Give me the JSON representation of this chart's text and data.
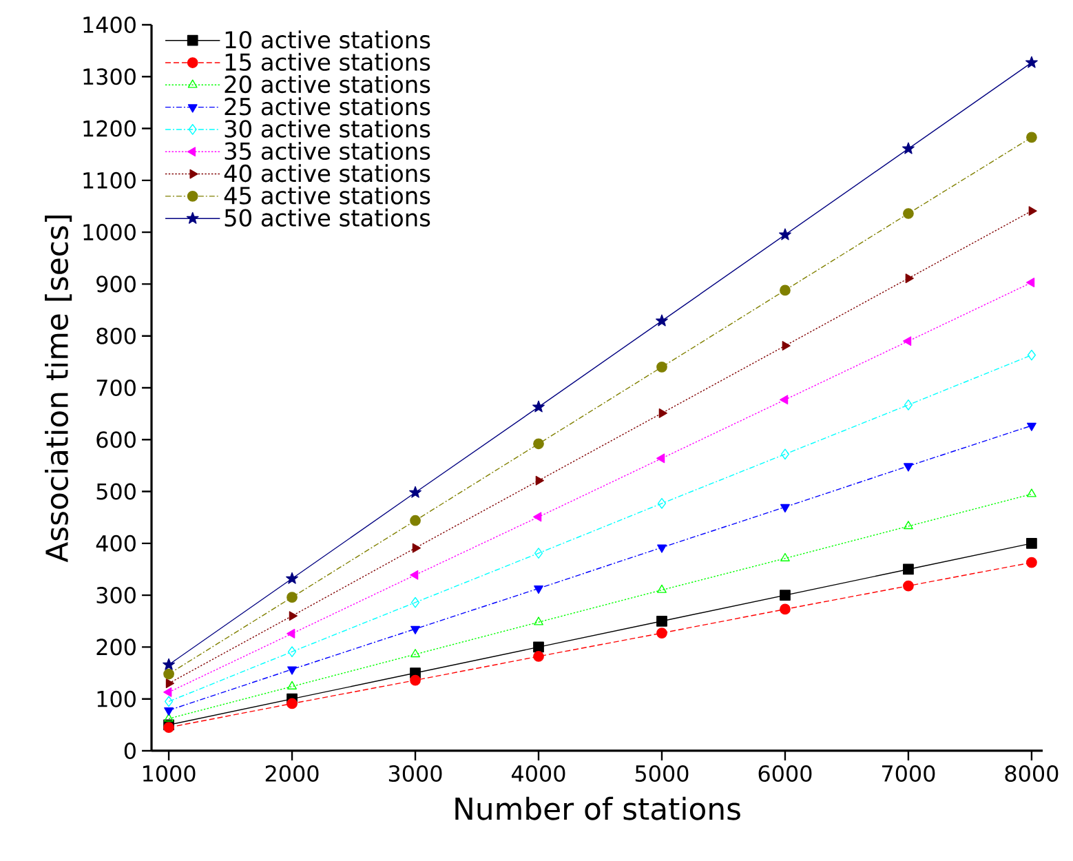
{
  "chart_data": {
    "type": "line",
    "xlabel": "Number of stations",
    "ylabel": "Association time [secs]",
    "x": [
      1000,
      2000,
      3000,
      4000,
      5000,
      6000,
      7000,
      8000
    ],
    "xlim": [
      860,
      8090
    ],
    "ylim": [
      0,
      1400
    ],
    "xticks": [
      1000,
      2000,
      3000,
      4000,
      5000,
      6000,
      7000,
      8000
    ],
    "yticks": [
      0,
      100,
      200,
      300,
      400,
      500,
      600,
      700,
      800,
      900,
      1000,
      1100,
      1200,
      1300,
      1400
    ],
    "grid": false,
    "legend": "top left",
    "series": [
      {
        "name": "10 active stations",
        "color": "#000000",
        "marker": "square",
        "line_style": "solid",
        "values": [
          50,
          100,
          150,
          200,
          250,
          300,
          350,
          400
        ]
      },
      {
        "name": "15 active stations",
        "color": "#ff0000",
        "marker": "circle",
        "line_style": "dashed",
        "values": [
          45,
          91,
          136,
          182,
          227,
          273,
          318,
          363
        ]
      },
      {
        "name": "20 active stations",
        "color": "#00ff00",
        "marker": "triangle",
        "line_style": "dotted",
        "values": [
          62,
          124,
          186,
          248,
          310,
          371,
          433,
          495
        ]
      },
      {
        "name": "25 active stations",
        "color": "#0000ff",
        "marker": "triangle-down",
        "line_style": "dashdot",
        "values": [
          78,
          157,
          235,
          313,
          392,
          470,
          549,
          627
        ]
      },
      {
        "name": "30 active stations",
        "color": "#00ffff",
        "marker": "diamond",
        "line_style": "dashdot",
        "values": [
          95,
          191,
          286,
          381,
          477,
          572,
          667,
          763
        ]
      },
      {
        "name": "35 active stations",
        "color": "#ff00ff",
        "marker": "triangle-left",
        "line_style": "dotted",
        "values": [
          113,
          226,
          339,
          451,
          564,
          677,
          790,
          903
        ]
      },
      {
        "name": "40 active stations",
        "color": "#800000",
        "marker": "triangle-right",
        "line_style": "dotted",
        "values": [
          130,
          260,
          391,
          521,
          651,
          781,
          911,
          1041
        ]
      },
      {
        "name": "45 active stations",
        "color": "#808000",
        "marker": "circle",
        "line_style": "dashdot",
        "values": [
          148,
          296,
          444,
          592,
          740,
          888,
          1036,
          1183
        ]
      },
      {
        "name": "50 active stations",
        "color": "#000080",
        "marker": "star",
        "line_style": "solid",
        "values": [
          166,
          332,
          498,
          663,
          829,
          995,
          1161,
          1327
        ]
      }
    ]
  }
}
